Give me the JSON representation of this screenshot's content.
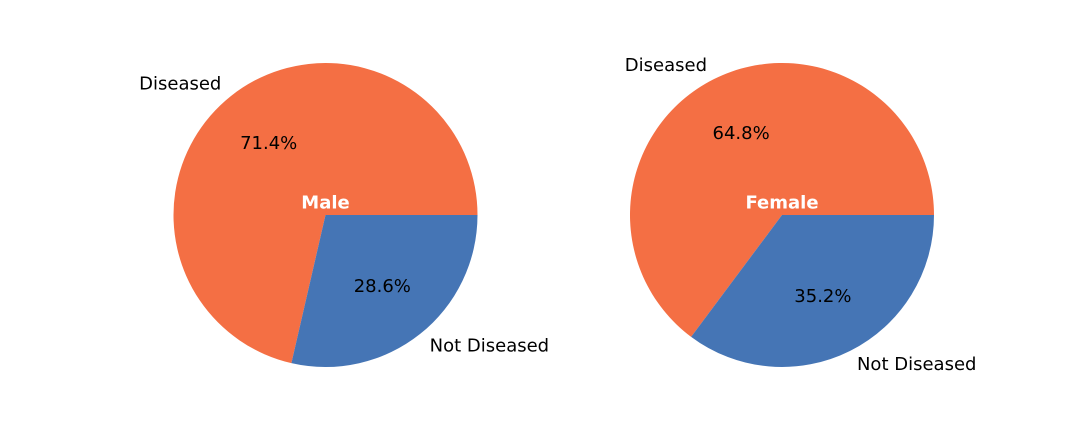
{
  "chart_data": [
    {
      "type": "pie",
      "title": "Male",
      "categories": [
        "Diseased",
        "Not Diseased"
      ],
      "values": [
        71.4,
        28.6
      ],
      "value_labels": [
        "71.4%",
        "28.6%"
      ],
      "colors": [
        "#f46f44",
        "#4575b5"
      ]
    },
    {
      "type": "pie",
      "title": "Female",
      "categories": [
        "Diseased",
        "Not Diseased"
      ],
      "values": [
        64.8,
        35.2
      ],
      "value_labels": [
        "64.8%",
        "35.2%"
      ],
      "colors": [
        "#f46f44",
        "#4575b5"
      ]
    }
  ]
}
